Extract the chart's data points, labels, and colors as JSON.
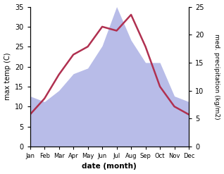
{
  "months": [
    "Jan",
    "Feb",
    "Mar",
    "Apr",
    "May",
    "Jun",
    "Jul",
    "Aug",
    "Sep",
    "Oct",
    "Nov",
    "Dec"
  ],
  "temp": [
    8,
    12,
    18,
    23,
    25,
    30,
    29,
    33,
    25,
    15,
    10,
    8
  ],
  "precip": [
    9,
    8,
    10,
    13,
    14,
    18,
    25,
    19,
    15,
    15,
    9,
    8
  ],
  "temp_color": "#b03050",
  "precip_fill_color": "#b8bce8",
  "ylabel_left": "max temp (C)",
  "ylabel_right": "med. precipitation (kg/m2)",
  "xlabel": "date (month)",
  "ylim_left": [
    0,
    35
  ],
  "ylim_right": [
    0,
    25
  ],
  "precip_scale_factor": 1.4
}
